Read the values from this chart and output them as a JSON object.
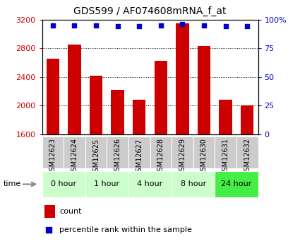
{
  "title": "GDS599 / AF074608mRNA_f_at",
  "categories": [
    "GSM12623",
    "GSM12624",
    "GSM12625",
    "GSM12626",
    "GSM12627",
    "GSM12628",
    "GSM12629",
    "GSM12630",
    "GSM12631",
    "GSM12632"
  ],
  "bar_values": [
    2650,
    2855,
    2420,
    2220,
    2080,
    2620,
    3150,
    2830,
    2080,
    2000
  ],
  "percentile_values": [
    95,
    95,
    95,
    94,
    94,
    95,
    96,
    95,
    94,
    94
  ],
  "bar_color": "#cc0000",
  "percentile_color": "#0000cc",
  "ylim_left": [
    1600,
    3200
  ],
  "ylim_right": [
    0,
    100
  ],
  "yticks_left": [
    1600,
    2000,
    2400,
    2800,
    3200
  ],
  "yticks_right": [
    0,
    25,
    50,
    75,
    100
  ],
  "ytick_labels_right": [
    "0",
    "25",
    "50",
    "75",
    "100%"
  ],
  "grid_values": [
    2000,
    2400,
    2800
  ],
  "time_groups": [
    {
      "label": "0 hour",
      "indices": [
        0,
        1
      ],
      "color": "#ccffcc"
    },
    {
      "label": "1 hour",
      "indices": [
        2,
        3
      ],
      "color": "#ccffcc"
    },
    {
      "label": "4 hour",
      "indices": [
        4,
        5
      ],
      "color": "#ccffcc"
    },
    {
      "label": "8 hour",
      "indices": [
        6,
        7
      ],
      "color": "#ccffcc"
    },
    {
      "label": "24 hour",
      "indices": [
        8,
        9
      ],
      "color": "#44ee44"
    }
  ],
  "xlabel_bg_color": "#cccccc",
  "bar_width": 0.6,
  "fig_bg": "#ffffff"
}
